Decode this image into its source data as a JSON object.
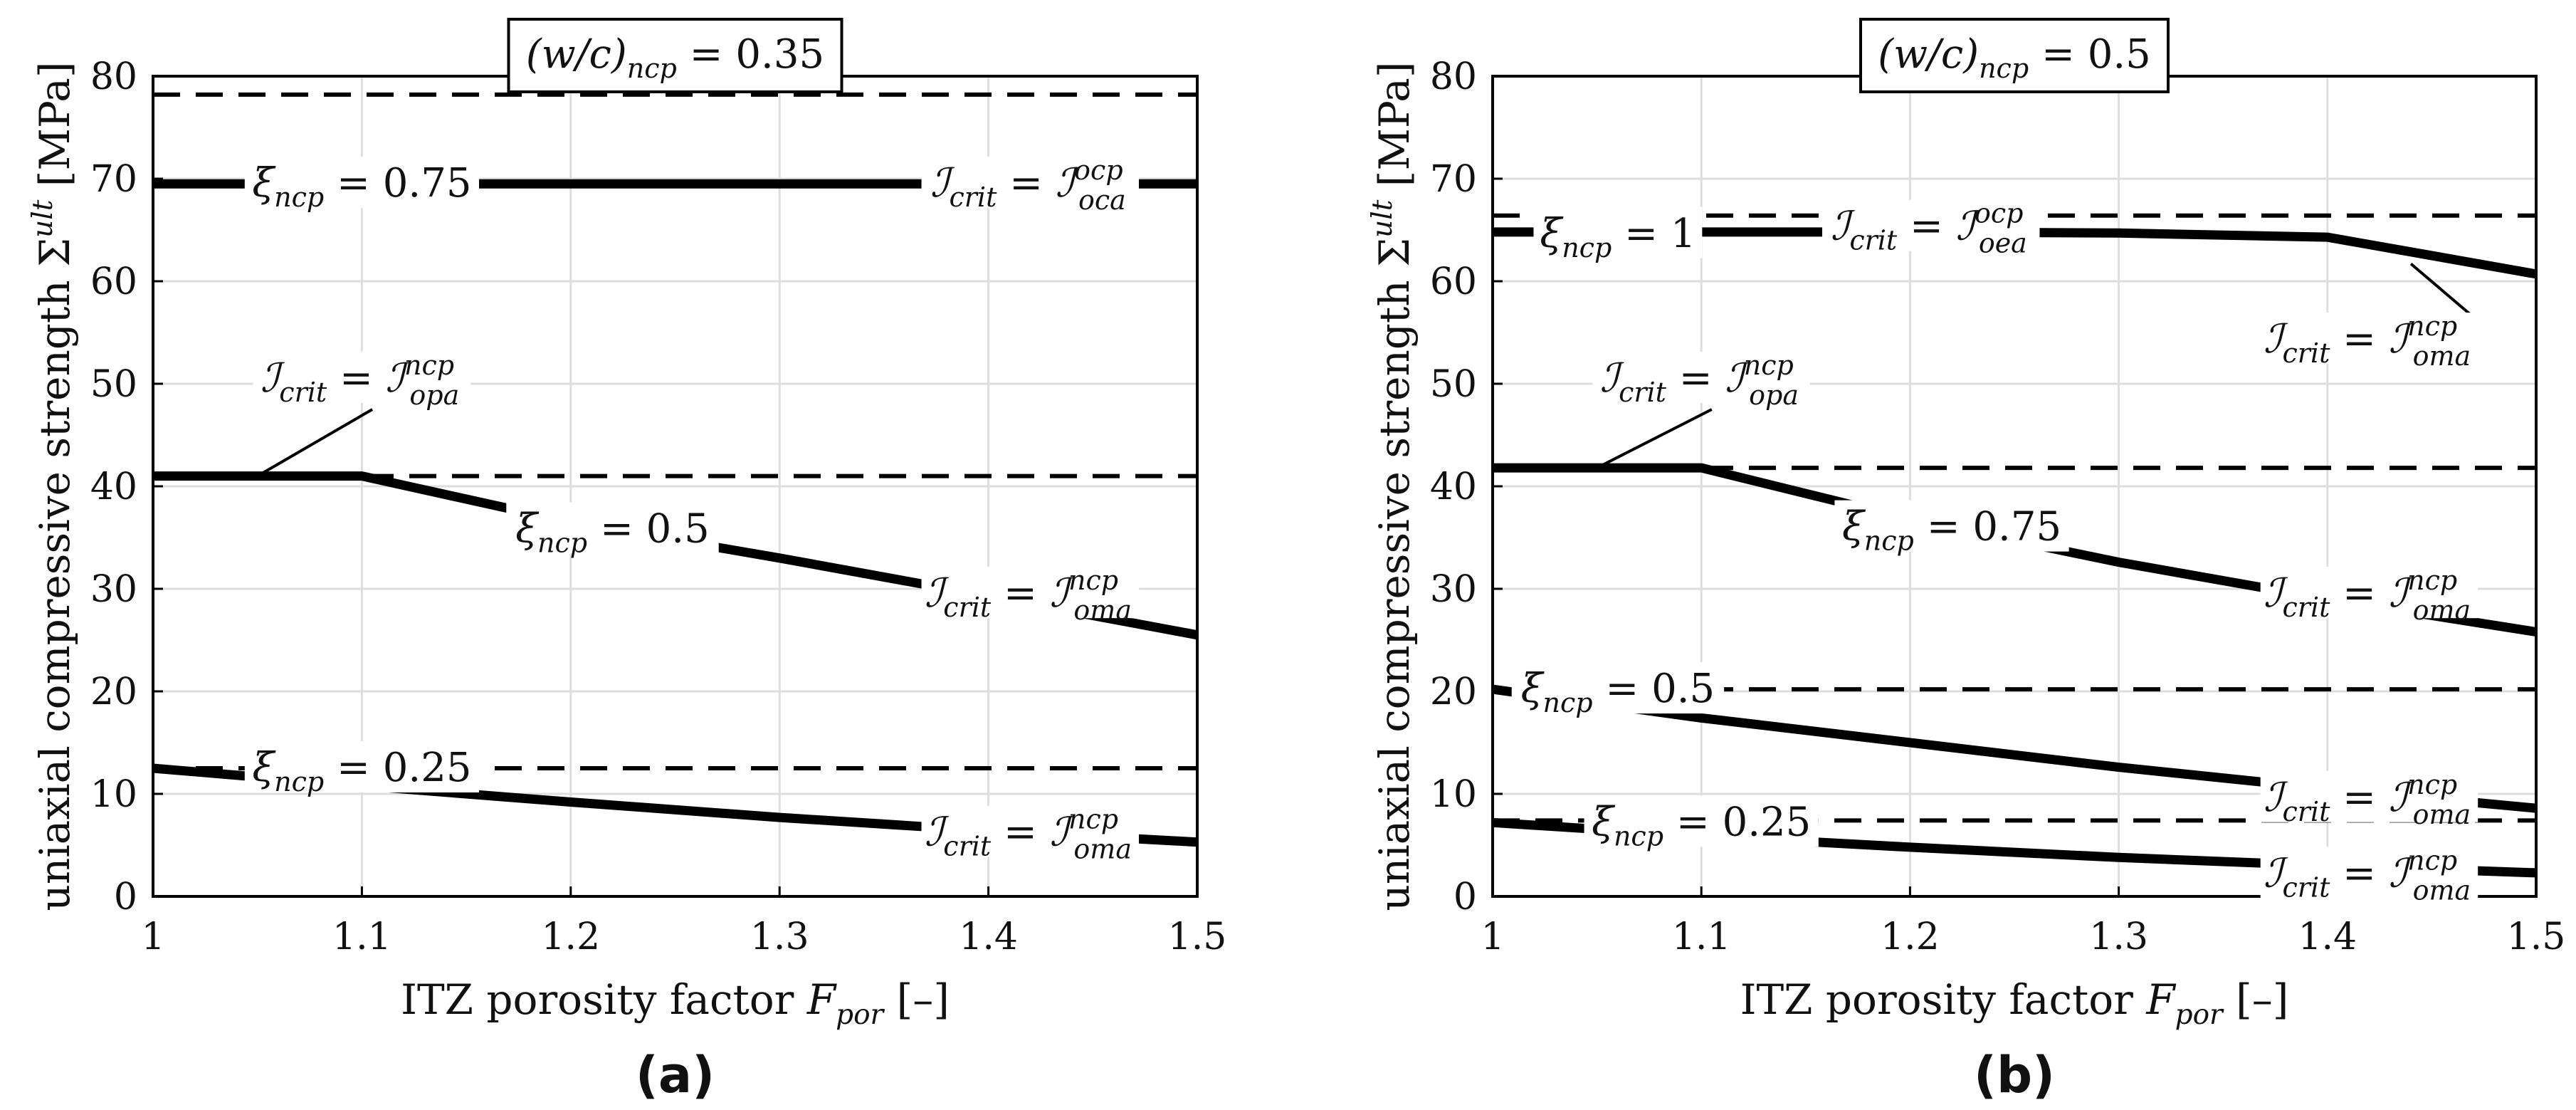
{
  "chart_data": [
    {
      "type": "line",
      "panel_label": "(a)",
      "title": "(w/c)ncp = 0.35",
      "xlabel": "ITZ porosity factor Fpor [–]",
      "ylabel": "uniaxial compressive strength Σult [MPa]",
      "xlim": [
        1,
        1.5
      ],
      "ylim": [
        0,
        80
      ],
      "x_ticks": [
        "1",
        "1.1",
        "1.2",
        "1.3",
        "1.4",
        "1.5"
      ],
      "y_ticks": [
        "0",
        "10",
        "20",
        "30",
        "40",
        "50",
        "60",
        "70",
        "80"
      ],
      "grid": true,
      "series": [
        {
          "name": "ξncp = 0.75",
          "style": "solid",
          "x": [
            1,
            1.1,
            1.2,
            1.3,
            1.4,
            1.5
          ],
          "y": [
            69.5,
            69.5,
            69.5,
            69.5,
            69.5,
            69.5
          ]
        },
        {
          "name": "ξncp = 0.75 bound",
          "style": "dashed",
          "x": [
            1,
            1.5
          ],
          "y": [
            78.2,
            78.2
          ]
        },
        {
          "name": "ξncp = 0.5",
          "style": "solid",
          "x": [
            1,
            1.1,
            1.2,
            1.3,
            1.4,
            1.5
          ],
          "y": [
            41,
            41,
            36.5,
            33,
            29.3,
            25.5
          ]
        },
        {
          "name": "ξncp = 0.5 bound",
          "style": "dashed",
          "x": [
            1,
            1.5
          ],
          "y": [
            41,
            41
          ]
        },
        {
          "name": "ξncp = 0.25",
          "style": "solid",
          "x": [
            1,
            1.1,
            1.2,
            1.3,
            1.4,
            1.5
          ],
          "y": [
            12.5,
            10.8,
            9.2,
            7.7,
            6.4,
            5.3
          ]
        },
        {
          "name": "ξncp = 0.25 bound",
          "style": "dashed",
          "x": [
            1,
            1.5
          ],
          "y": [
            12.5,
            12.5
          ]
        }
      ],
      "annotations": [
        {
          "text": "ξncp = 0.75",
          "x": 1.1,
          "y": 69.5
        },
        {
          "text": "Icrit = I^ocp_oca",
          "x": 1.42,
          "y": 69.5
        },
        {
          "text": "Icrit = I^ncp_opa",
          "x": 1.1,
          "y": 50.5
        },
        {
          "text": "ξncp = 0.5",
          "x": 1.22,
          "y": 35.8
        },
        {
          "text": "Icrit = I^ncp_oma",
          "x": 1.42,
          "y": 29.5
        },
        {
          "text": "ξncp = 0.25",
          "x": 1.1,
          "y": 12.5
        },
        {
          "text": "Icrit = I^ncp_oma",
          "x": 1.42,
          "y": 6.2
        }
      ]
    },
    {
      "type": "line",
      "panel_label": "(b)",
      "title": "(w/c)ncp = 0.5",
      "xlabel": "ITZ porosity factor Fpor [–]",
      "ylabel": "uniaxial compressive strength Σult [MPa]",
      "xlim": [
        1,
        1.5
      ],
      "ylim": [
        0,
        80
      ],
      "x_ticks": [
        "1",
        "1.1",
        "1.2",
        "1.3",
        "1.4",
        "1.5"
      ],
      "y_ticks": [
        "0",
        "10",
        "20",
        "30",
        "40",
        "50",
        "60",
        "70",
        "80"
      ],
      "grid": true,
      "series": [
        {
          "name": "ξncp = 1",
          "style": "solid",
          "x": [
            1,
            1.1,
            1.2,
            1.3,
            1.4,
            1.5
          ],
          "y": [
            64.8,
            64.8,
            64.8,
            64.7,
            64.3,
            60.7
          ]
        },
        {
          "name": "ξncp = 1 bound",
          "style": "dashed",
          "x": [
            1,
            1.5
          ],
          "y": [
            66.4,
            66.4
          ]
        },
        {
          "name": "ξncp = 0.75",
          "style": "solid",
          "x": [
            1,
            1.1,
            1.2,
            1.3,
            1.4,
            1.5
          ],
          "y": [
            41.8,
            41.8,
            36.8,
            32.6,
            29,
            25.8
          ]
        },
        {
          "name": "ξncp = 0.75 bound",
          "style": "dashed",
          "x": [
            1,
            1.5
          ],
          "y": [
            41.8,
            41.8
          ]
        },
        {
          "name": "ξncp = 0.5",
          "style": "solid",
          "x": [
            1,
            1.1,
            1.2,
            1.3,
            1.4,
            1.5
          ],
          "y": [
            20.2,
            17.4,
            15,
            12.6,
            10.5,
            8.6
          ]
        },
        {
          "name": "ξncp = 0.5 bound",
          "style": "dashed",
          "x": [
            1,
            1.5
          ],
          "y": [
            20.2,
            20.2
          ]
        },
        {
          "name": "ξncp = 0.25",
          "style": "solid",
          "x": [
            1,
            1.1,
            1.2,
            1.3,
            1.4,
            1.5
          ],
          "y": [
            7.2,
            5.9,
            4.8,
            3.8,
            3,
            2.3
          ]
        },
        {
          "name": "ξncp = 0.25 bound",
          "style": "dashed",
          "x": [
            1,
            1.5
          ],
          "y": [
            7.4,
            7.4
          ]
        }
      ],
      "annotations": [
        {
          "text": "ξncp = 1",
          "x": 1.06,
          "y": 64.6
        },
        {
          "text": "Icrit = I^ocp_oea",
          "x": 1.21,
          "y": 65.3
        },
        {
          "text": "Icrit = I^ncp_oma",
          "x": 1.42,
          "y": 54.3
        },
        {
          "text": "Icrit = I^ncp_opa",
          "x": 1.1,
          "y": 50.5
        },
        {
          "text": "ξncp = 0.75",
          "x": 1.22,
          "y": 36
        },
        {
          "text": "Icrit = I^ncp_oma",
          "x": 1.42,
          "y": 29.5
        },
        {
          "text": "ξncp = 0.5",
          "x": 1.06,
          "y": 20.2
        },
        {
          "text": "Icrit = I^ncp_oma",
          "x": 1.42,
          "y": 9.6
        },
        {
          "text": "ξncp = 0.25",
          "x": 1.1,
          "y": 7.2
        },
        {
          "text": "Icrit = I^ncp_oma",
          "x": 1.42,
          "y": 2.2
        }
      ]
    }
  ]
}
